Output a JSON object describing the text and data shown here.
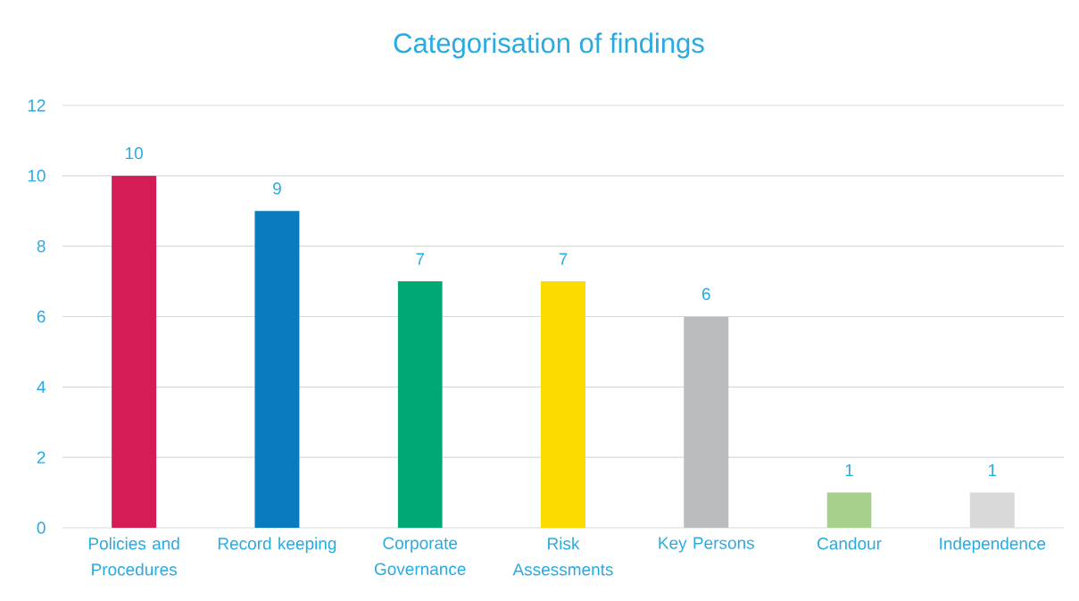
{
  "chart_data": {
    "type": "bar",
    "title": "Categorisation of findings",
    "categories": [
      "Policies and Procedures",
      "Record keeping",
      "Corporate Governance",
      "Risk Assessments",
      "Key Persons",
      "Candour",
      "Independence"
    ],
    "values": [
      10,
      9,
      7,
      7,
      6,
      1,
      1
    ],
    "colors": [
      "#d41c56",
      "#0a7bbd",
      "#00a874",
      "#fcdc00",
      "#bbbcbe",
      "#a8d08d",
      "#d9d9d9"
    ],
    "ylim": [
      0,
      12
    ],
    "yticks": [
      0,
      2,
      4,
      6,
      8,
      10,
      12
    ],
    "grid": "y",
    "data_labels": true
  }
}
